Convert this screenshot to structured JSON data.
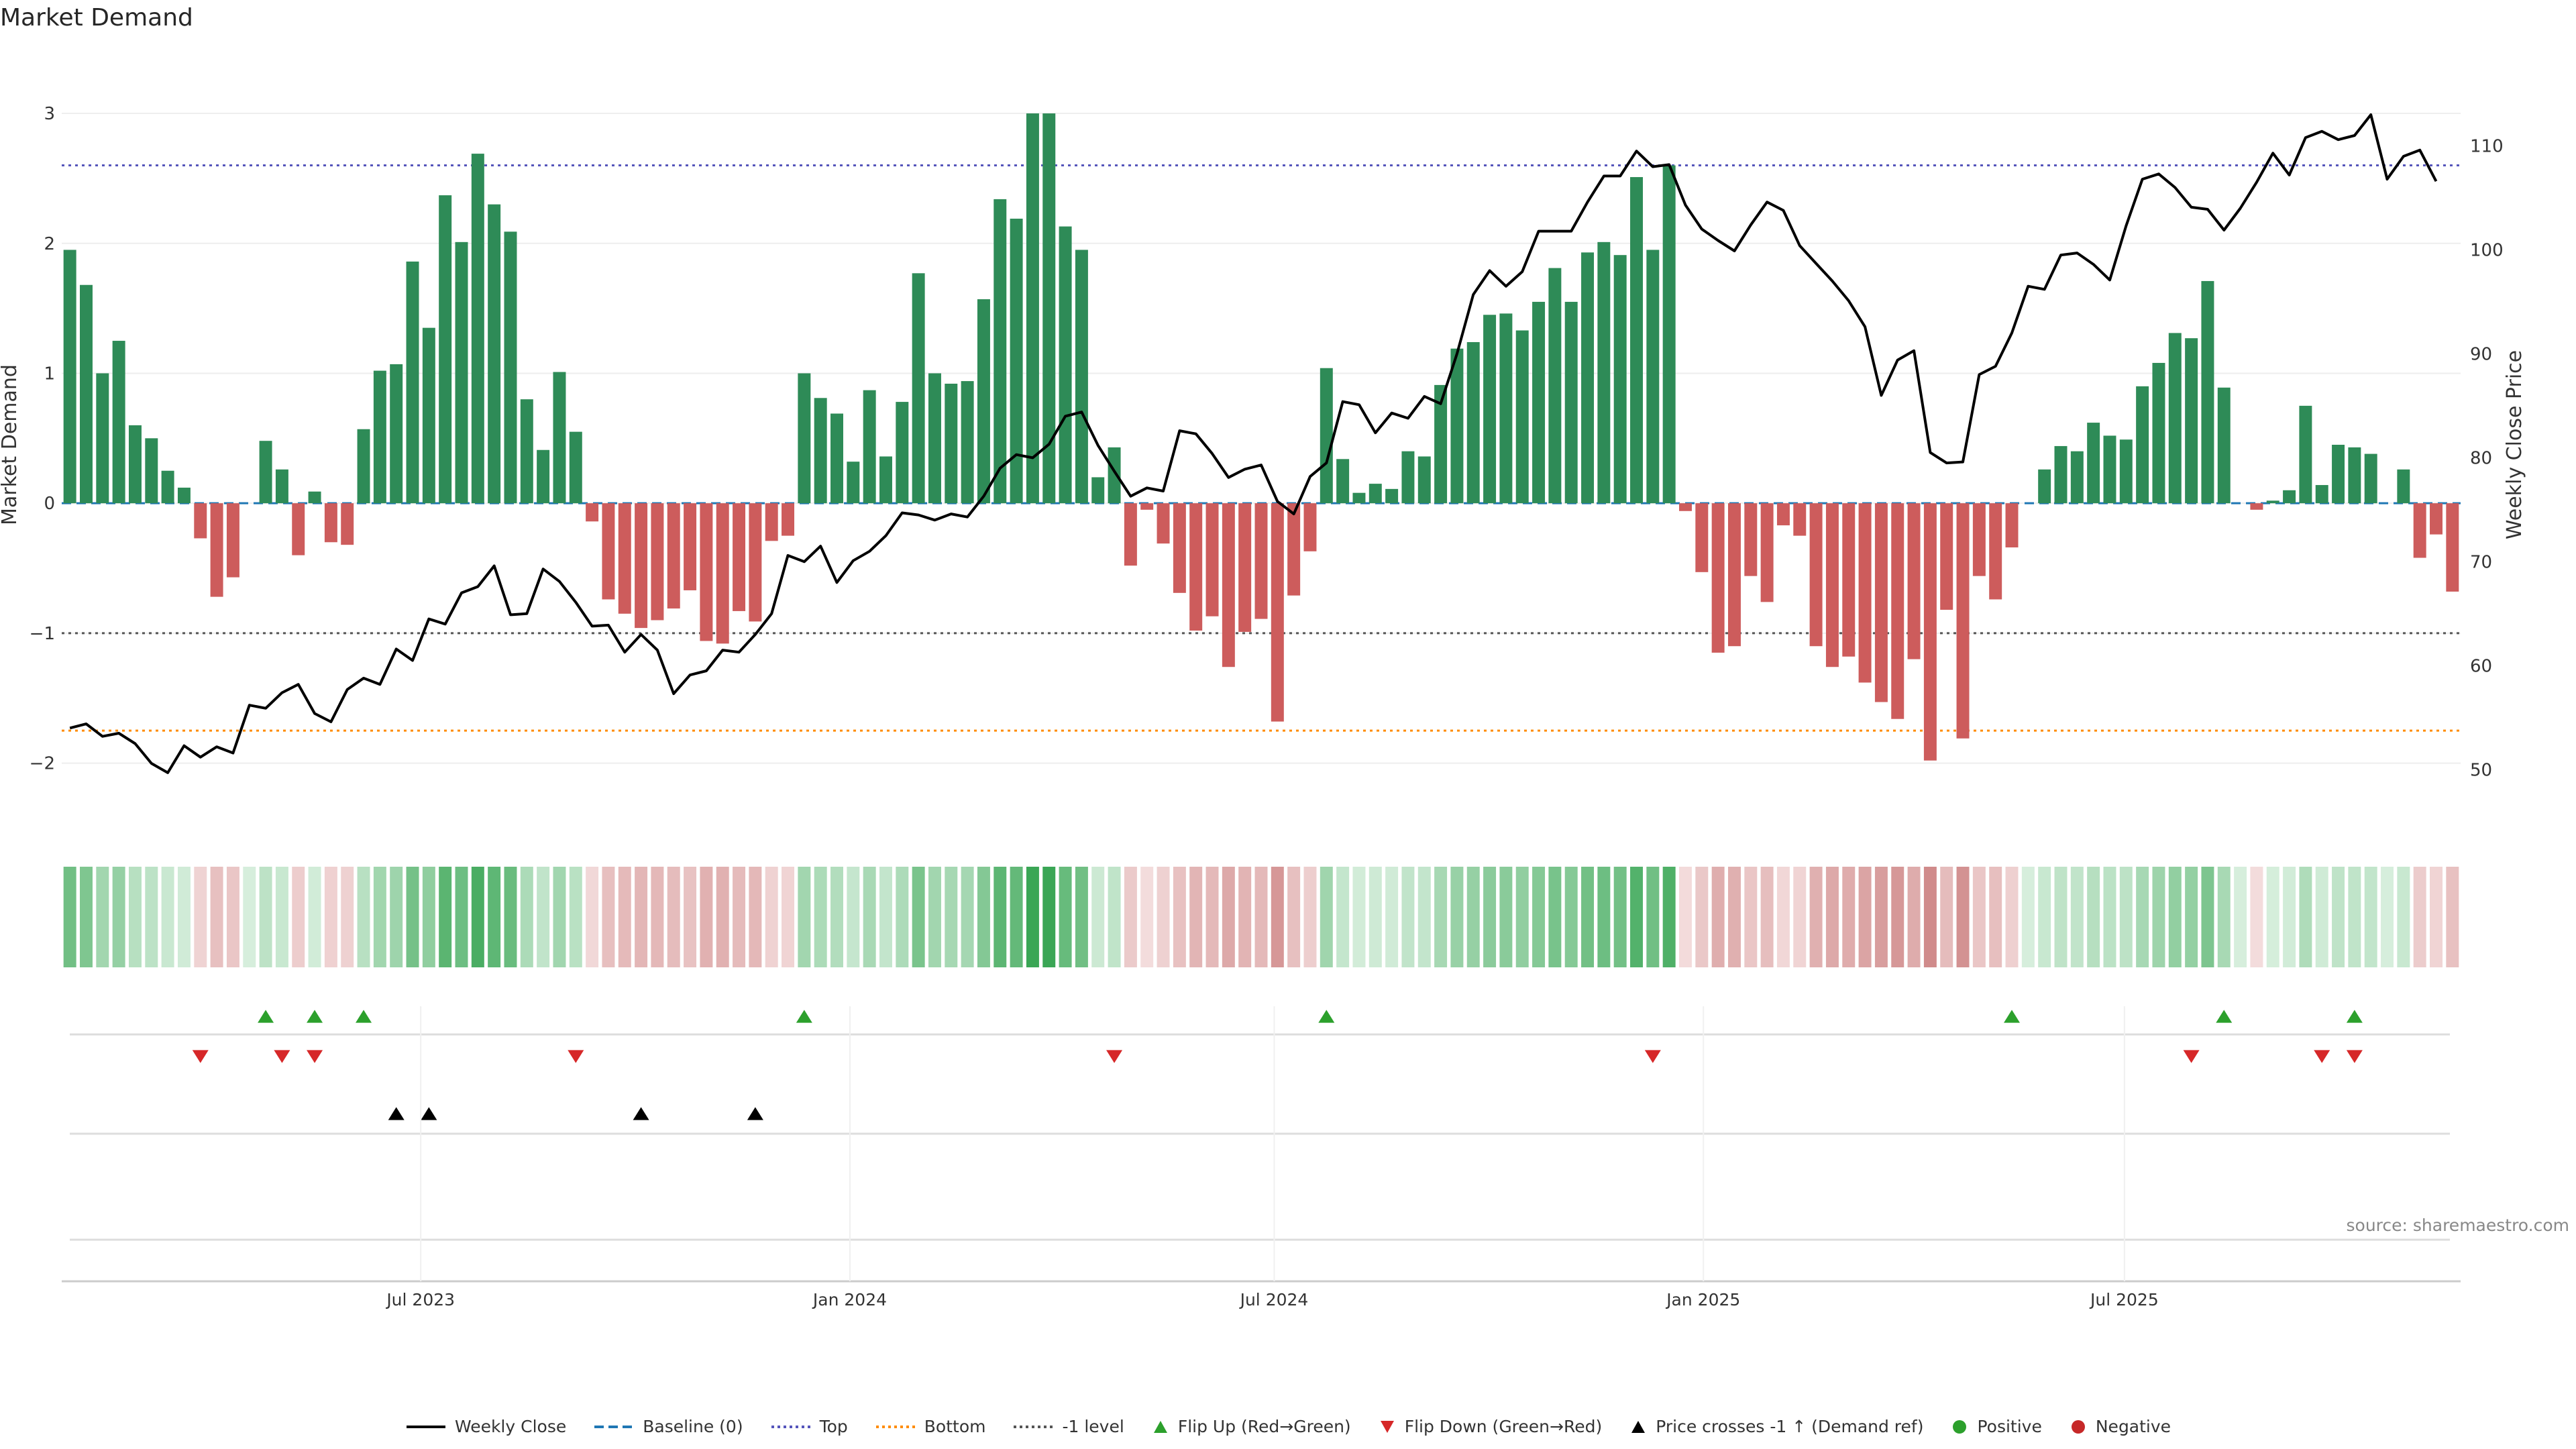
{
  "title": "Market Demand",
  "source": "source: sharemaestro.com",
  "colors": {
    "positive_bar": "#2e8b57",
    "negative_bar": "#cd5c5c",
    "close_line": "#000000",
    "baseline": "#1f77b4",
    "top_level": "#5555bb",
    "bottom_level": "#ff8c00",
    "minus_one_level": "#555555",
    "flip_up": "#2ca02c",
    "flip_down": "#d62728",
    "price_cross": "#000000",
    "positive_dot": "#2ca02c",
    "negative_dot": "#c62828"
  },
  "legend": [
    {
      "label": "Weekly Close",
      "kind": "line-solid",
      "color": "#000000"
    },
    {
      "label": "Baseline (0)",
      "kind": "line-dash",
      "color": "#1f77b4"
    },
    {
      "label": "Top",
      "kind": "line-dot",
      "color": "#5555bb"
    },
    {
      "label": "Bottom",
      "kind": "line-dot",
      "color": "#ff8c00"
    },
    {
      "label": "-1 level",
      "kind": "line-dot",
      "color": "#555555"
    },
    {
      "label": "Flip Up (Red→Green)",
      "kind": "tri-up",
      "color": "#2ca02c"
    },
    {
      "label": "Flip Down (Green→Red)",
      "kind": "tri-down",
      "color": "#d62728"
    },
    {
      "label": "Price crosses -1 ↑ (Demand ref)",
      "kind": "tri-up",
      "color": "#000000"
    },
    {
      "label": "Positive",
      "kind": "dot",
      "color": "#2ca02c"
    },
    {
      "label": "Negative",
      "kind": "dot",
      "color": "#c62828"
    }
  ],
  "chart_data": {
    "type": "bar",
    "title": "Market Demand",
    "ylabel": "Market Demand",
    "y2label": "Weekly Close Price",
    "ylim": [
      -2.25,
      3.15
    ],
    "y_ticks": [
      {
        "value": 3,
        "label": "3"
      },
      {
        "value": 2,
        "label": "2"
      },
      {
        "value": 1,
        "label": "1"
      },
      {
        "value": 0,
        "label": "0"
      },
      {
        "value": -1,
        "label": "−1"
      },
      {
        "value": -2,
        "label": "−2"
      }
    ],
    "y2lim": [
      47.5,
      115
    ],
    "y2_ticks": [
      {
        "value": 50,
        "label": "50"
      },
      {
        "value": 60,
        "label": "60"
      },
      {
        "value": 70,
        "label": "70"
      },
      {
        "value": 80,
        "label": "80"
      },
      {
        "value": 90,
        "label": "90"
      },
      {
        "value": 100,
        "label": "100"
      },
      {
        "value": 110,
        "label": "110"
      }
    ],
    "x_ticks": [
      {
        "week": 21.5,
        "label": "Jul 2023"
      },
      {
        "week": 47.8,
        "label": "Jan 2024"
      },
      {
        "week": 73.8,
        "label": "Jul 2024"
      },
      {
        "week": 100.1,
        "label": "Jan 2025"
      },
      {
        "week": 125.9,
        "label": "Jul 2025"
      }
    ],
    "levels": {
      "top": 2.6,
      "bottom": -1.75,
      "minus_one": -1.0,
      "baseline": 0
    },
    "demand": [
      1.95,
      1.68,
      1.0,
      1.25,
      0.6,
      0.5,
      0.25,
      0.12,
      -0.27,
      -0.72,
      -0.57,
      0.0,
      0.48,
      0.26,
      -0.4,
      0.09,
      -0.3,
      -0.32,
      0.57,
      1.02,
      1.07,
      1.86,
      1.35,
      2.37,
      2.01,
      2.69,
      2.3,
      2.09,
      0.8,
      0.41,
      1.01,
      0.55,
      -0.14,
      -0.74,
      -0.85,
      -0.96,
      -0.9,
      -0.81,
      -0.67,
      -1.06,
      -1.08,
      -0.83,
      -0.91,
      -0.29,
      -0.25,
      1.0,
      0.81,
      0.69,
      0.32,
      0.87,
      0.36,
      0.78,
      1.77,
      1.0,
      0.92,
      0.94,
      1.57,
      2.34,
      2.19,
      3.0,
      3.0,
      2.13,
      1.95,
      0.2,
      0.43,
      -0.48,
      -0.05,
      -0.31,
      -0.69,
      -0.98,
      -0.87,
      -1.26,
      -0.99,
      -0.89,
      -1.68,
      -0.71,
      -0.37,
      1.04,
      0.34,
      0.08,
      0.15,
      0.11,
      0.4,
      0.36,
      0.91,
      1.19,
      1.24,
      1.45,
      1.46,
      1.33,
      1.55,
      1.81,
      1.55,
      1.93,
      2.01,
      1.91,
      2.51,
      1.95,
      2.6,
      -0.06,
      -0.53,
      -1.15,
      -1.1,
      -0.56,
      -0.76,
      -0.17,
      -0.25,
      -1.1,
      -1.26,
      -1.18,
      -1.38,
      -1.53,
      -1.66,
      -1.2,
      -1.98,
      -0.82,
      -1.81,
      -0.56,
      -0.74,
      -0.34,
      0.0,
      0.26,
      0.44,
      0.4,
      0.62,
      0.52,
      0.49,
      0.9,
      1.08,
      1.31,
      1.27,
      1.71,
      0.89,
      0.0,
      -0.05,
      0.02,
      0.1,
      0.75,
      0.14,
      0.45,
      0.43,
      0.38,
      0.0,
      0.26,
      -0.42,
      -0.24,
      -0.68
    ],
    "weekly_close": [
      54.0,
      54.4,
      53.2,
      53.5,
      52.5,
      50.6,
      49.7,
      52.3,
      51.2,
      52.2,
      51.6,
      56.2,
      55.9,
      57.4,
      58.2,
      55.4,
      54.6,
      57.7,
      58.8,
      58.2,
      61.6,
      60.5,
      64.5,
      64.0,
      67.0,
      67.6,
      69.6,
      64.9,
      65.0,
      69.3,
      68.1,
      66.1,
      63.8,
      63.9,
      61.3,
      63.0,
      61.5,
      57.3,
      59.1,
      59.5,
      61.5,
      61.3,
      63.0,
      65.0,
      70.6,
      70.0,
      71.5,
      68.0,
      70.1,
      71.0,
      72.5,
      74.7,
      74.5,
      74.0,
      74.6,
      74.3,
      76.3,
      79.0,
      80.3,
      80.0,
      81.3,
      84.0,
      84.4,
      81.2,
      78.7,
      76.3,
      77.1,
      76.8,
      82.6,
      82.3,
      80.4,
      78.1,
      78.9,
      79.3,
      75.8,
      74.6,
      78.2,
      79.5,
      85.4,
      85.1,
      82.4,
      84.3,
      83.8,
      85.9,
      85.2,
      90.0,
      95.7,
      98.0,
      96.5,
      97.9,
      101.8,
      101.8,
      101.8,
      104.6,
      107.1,
      107.1,
      109.5,
      108.0,
      108.2,
      104.3,
      102.0,
      100.9,
      99.9,
      102.4,
      104.6,
      103.8,
      100.4,
      98.7,
      97.0,
      95.1,
      92.6,
      86.0,
      89.4,
      90.3,
      80.5,
      79.5,
      79.6,
      88.0,
      88.8,
      92.0,
      96.5,
      96.2,
      99.5,
      99.7,
      98.6,
      97.1,
      102.3,
      106.8,
      107.3,
      106.0,
      104.1,
      103.9,
      101.9,
      104.0,
      106.5,
      109.3,
      107.2,
      110.8,
      111.4,
      110.6,
      111.0,
      113.0,
      106.8,
      109.0,
      109.6,
      106.6
    ],
    "flip_up_weeks": [
      12,
      15,
      18,
      45,
      77,
      119,
      132,
      140
    ],
    "flip_down_weeks": [
      8,
      13,
      15,
      31,
      64,
      97,
      130,
      138,
      140
    ],
    "price_cross_weeks": [
      20,
      22,
      35,
      42
    ]
  }
}
